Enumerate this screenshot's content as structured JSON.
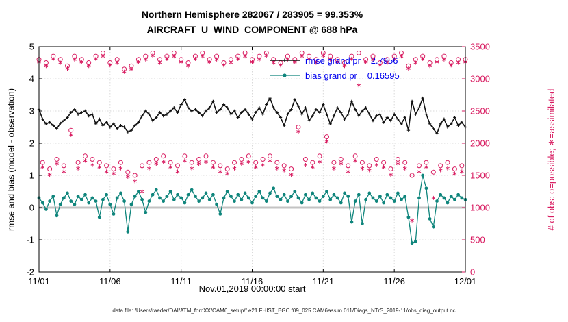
{
  "title": {
    "line1": "Northern Hemisphere 282067 / 283905 = 99.353%",
    "line2": "AIRCRAFT_U_WIND_COMPONENT @ 688 hPa"
  },
  "axis": {
    "left_label": "rmse and bias (model - observation)",
    "right_label": "# of obs: o=possible; ∗=assimilated",
    "x_label": "Nov.01,2019 00:00:00 start"
  },
  "legend": {
    "items": [
      {
        "label": "rmse grand pr = 2.7956"
      },
      {
        "label": "bias grand pr = 0.16595"
      }
    ]
  },
  "caption": "data file: /Users/raeder/DAI/ATM_forcXX/CAM6_setup/f.e21.FHIST_BGC.f09_025.CAM6assim.011/Diags_NTrS_2019-11/obs_diag_output.nc",
  "colors": {
    "rmse": "#111111",
    "bias": "#0f857c",
    "obs": "#d81b60",
    "legend_text": "#0000ee",
    "zero_line": "#c3c3c3",
    "grid": "#d9d9d9"
  },
  "chart_data": {
    "type": "line",
    "x_start_day": 0,
    "x_step_days": 0.25,
    "xlim": [
      0,
      30
    ],
    "x_ticks": {
      "days": [
        0,
        5,
        10,
        15,
        20,
        25,
        30
      ],
      "labels": [
        "11/01",
        "11/06",
        "11/11",
        "11/16",
        "11/21",
        "11/26",
        "12/01"
      ]
    },
    "left_axis": {
      "lim": [
        -2,
        5
      ],
      "ticks": [
        -2,
        -1,
        0,
        1,
        2,
        3,
        4,
        5
      ]
    },
    "right_axis": {
      "lim": [
        0,
        3500
      ],
      "ticks": [
        0,
        500,
        1000,
        1500,
        2000,
        2500,
        3000,
        3500
      ]
    },
    "series": [
      {
        "name": "rmse",
        "axis": "left",
        "marker": "plus",
        "grand_value": 2.7956,
        "values": [
          3.05,
          2.75,
          2.6,
          2.65,
          2.55,
          2.45,
          2.62,
          2.7,
          2.8,
          2.95,
          3.05,
          2.9,
          2.95,
          3.0,
          2.85,
          2.9,
          2.6,
          2.75,
          2.55,
          2.65,
          2.5,
          2.6,
          2.45,
          2.55,
          2.5,
          2.35,
          2.4,
          2.55,
          2.65,
          2.85,
          3.0,
          2.9,
          2.7,
          2.8,
          2.95,
          2.85,
          2.9,
          3.0,
          3.1,
          2.95,
          3.2,
          3.35,
          3.1,
          3.0,
          3.05,
          2.95,
          2.85,
          3.0,
          3.1,
          3.3,
          2.95,
          3.05,
          3.2,
          3.1,
          2.9,
          3.0,
          2.8,
          2.95,
          3.05,
          2.9,
          2.75,
          2.95,
          3.1,
          2.9,
          3.2,
          3.4,
          3.1,
          2.95,
          2.8,
          2.55,
          2.9,
          3.05,
          3.35,
          3.15,
          2.9,
          3.1,
          2.7,
          2.85,
          3.05,
          2.95,
          3.2,
          2.9,
          2.6,
          2.85,
          3.1,
          2.95,
          2.75,
          2.9,
          3.3,
          3.05,
          2.85,
          3.0,
          3.1,
          2.9,
          2.7,
          2.85,
          2.9,
          2.65,
          2.8,
          2.7,
          2.9,
          2.75,
          2.6,
          2.8,
          2.4,
          3.3,
          2.9,
          3.1,
          3.4,
          2.9,
          2.6,
          2.45,
          2.3,
          2.6,
          2.75,
          2.5,
          2.6,
          2.8,
          2.55,
          2.65,
          2.5
        ]
      },
      {
        "name": "bias",
        "axis": "left",
        "marker": "circle-filled",
        "grand_value": 0.16595,
        "values": [
          0.3,
          0.15,
          -0.05,
          0.2,
          0.35,
          -0.25,
          0.1,
          0.3,
          0.45,
          0.2,
          0.1,
          0.35,
          0.25,
          0.4,
          0.15,
          0.3,
          0.2,
          -0.3,
          0.25,
          0.4,
          0.1,
          -0.2,
          0.3,
          0.45,
          0.2,
          -0.75,
          0.1,
          0.35,
          0.5,
          0.25,
          -0.15,
          0.2,
          0.4,
          0.55,
          0.3,
          0.2,
          0.35,
          0.5,
          0.25,
          0.4,
          0.3,
          0.15,
          0.4,
          0.55,
          0.35,
          0.2,
          0.3,
          0.45,
          0.25,
          0.4,
          0.1,
          -0.2,
          0.3,
          0.5,
          0.35,
          0.2,
          0.4,
          0.25,
          0.45,
          0.3,
          0.15,
          0.35,
          0.5,
          0.3,
          0.2,
          0.45,
          0.6,
          0.35,
          0.25,
          0.4,
          0.2,
          0.35,
          0.5,
          0.3,
          0.15,
          0.4,
          0.25,
          0.45,
          0.3,
          0.2,
          0.35,
          0.5,
          0.25,
          0.4,
          0.3,
          0.15,
          0.45,
          0.35,
          -0.45,
          0.2,
          0.4,
          -0.5,
          0.25,
          0.45,
          0.3,
          0.2,
          0.35,
          0.15,
          0.4,
          0.3,
          0.2,
          0.45,
          0.25,
          0.35,
          -0.3,
          -1.1,
          -1.05,
          0.3,
          1.0,
          0.6,
          -0.35,
          -0.6,
          0.2,
          0.4,
          0.3,
          0.15,
          0.35,
          0.25,
          0.4,
          0.3,
          0.25
        ]
      },
      {
        "name": "possible_obs",
        "axis": "right",
        "marker": "circle-open",
        "values": [
          3300,
          1700,
          3250,
          1600,
          3350,
          1750,
          3300,
          1650,
          3200,
          2200,
          3350,
          1700,
          3300,
          1800,
          3250,
          1750,
          3350,
          1700,
          3400,
          1650,
          3250,
          1600,
          3300,
          1700,
          3150,
          1550,
          3200,
          1500,
          3300,
          1650,
          3350,
          1700,
          3400,
          1750,
          3300,
          1800,
          3350,
          1700,
          3400,
          1650,
          3300,
          1800,
          3250,
          1700,
          3350,
          1750,
          3400,
          1800,
          3300,
          1700,
          3350,
          1650,
          3250,
          1600,
          3300,
          1700,
          3350,
          1750,
          3400,
          1800,
          3300,
          1700,
          3350,
          1750,
          3400,
          1800,
          3300,
          1700,
          3250,
          1650,
          3350,
          1600,
          3300,
          2250,
          3400,
          1750,
          3350,
          1700,
          3300,
          1800,
          3400,
          2100,
          3350,
          1700,
          3300,
          1750,
          3250,
          1650,
          3350,
          1800,
          3400,
          1700,
          3300,
          1650,
          3350,
          1750,
          3250,
          1700,
          3300,
          1600,
          3350,
          1750,
          3400,
          1700,
          3200,
          1500,
          3300,
          1650,
          3350,
          1700,
          3250,
          1550,
          3300,
          1650,
          3350,
          1700,
          3250,
          1600,
          3300,
          1650,
          3300
        ]
      },
      {
        "name": "assimilated_obs",
        "axis": "right",
        "marker": "asterisk",
        "values": [
          3260,
          1630,
          3200,
          1510,
          3310,
          1680,
          3250,
          1560,
          3160,
          2130,
          3300,
          1610,
          3260,
          1730,
          3200,
          1660,
          3310,
          1630,
          3350,
          1560,
          3210,
          1530,
          3250,
          1610,
          3110,
          1480,
          3150,
          1410,
          3260,
          1250,
          3300,
          1610,
          3360,
          1680,
          3250,
          1710,
          3310,
          1630,
          3350,
          1560,
          3260,
          1730,
          3200,
          1610,
          3310,
          1680,
          3350,
          1710,
          3260,
          1630,
          3300,
          1560,
          3210,
          1530,
          3250,
          1610,
          3310,
          1680,
          3350,
          1710,
          3260,
          1630,
          3300,
          1660,
          3360,
          1730,
          3250,
          1610,
          3210,
          1580,
          3300,
          1510,
          3260,
          2180,
          3350,
          1660,
          3310,
          1630,
          3250,
          1710,
          3360,
          2030,
          3300,
          1610,
          3260,
          1680,
          3200,
          1560,
          3310,
          1730,
          2900,
          1610,
          3260,
          1580,
          3300,
          1660,
          3210,
          1630,
          3250,
          1510,
          3310,
          1680,
          3350,
          1610,
          3160,
          800,
          3250,
          1560,
          3310,
          1630,
          3200,
          1150,
          3260,
          1580,
          3300,
          1610,
          3210,
          1530,
          3250,
          1560,
          3260
        ]
      }
    ]
  }
}
